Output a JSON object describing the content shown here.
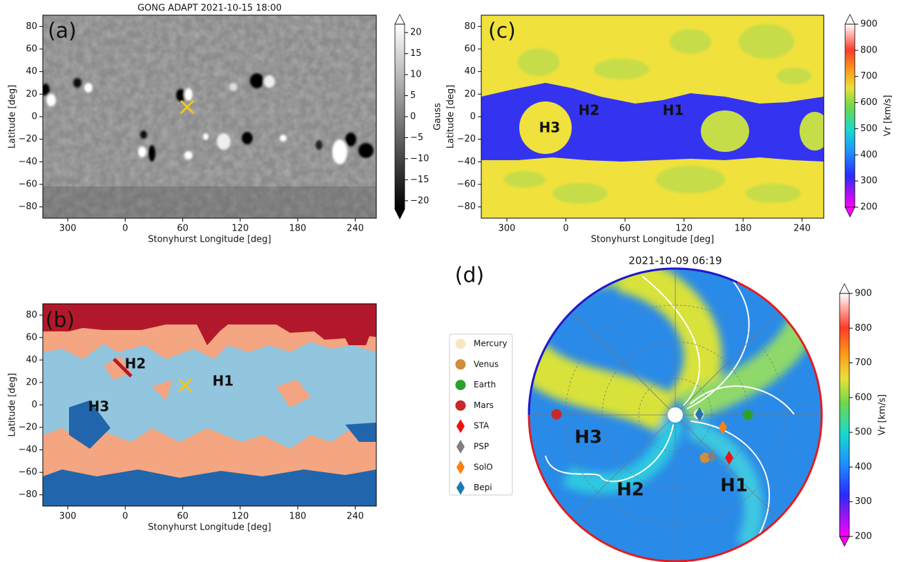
{
  "chart_data": [
    {
      "type": "heatmap",
      "panel_label": "(a)",
      "title": "GONG ADAPT 2021-10-15 18:00",
      "xlabel": "Stonyhurst Longitude [deg]",
      "ylabel": "Latitude [deg]",
      "xlim": [
        -86,
        262
      ],
      "xticks": [
        {
          "value": -60,
          "label": "300"
        },
        0,
        60,
        120,
        180,
        240
      ],
      "ylim": [
        -90,
        90
      ],
      "yticks": [
        {
          "value": -80,
          "label": "−80"
        },
        {
          "value": -60,
          "label": "−60"
        },
        {
          "value": -40,
          "label": "−40"
        },
        {
          "value": -20,
          "label": "−20"
        },
        0,
        20,
        40,
        60,
        80
      ],
      "colorbar": {
        "label": "Gauss",
        "lim": [
          -22,
          22
        ],
        "ticks": [
          {
            "value": -20,
            "label": "−20"
          },
          {
            "value": -15,
            "label": "−15"
          },
          {
            "value": -10,
            "label": "−10"
          },
          {
            "value": -5,
            "label": "−5"
          },
          0,
          5,
          10,
          15,
          20
        ]
      }
    },
    {
      "type": "heatmap",
      "panel_label": "(b)",
      "xlabel": "Stonyhurst Longitude [deg]",
      "ylabel": "Latitude [deg]",
      "xlim": [
        -86,
        262
      ],
      "xticks": [
        {
          "value": -60,
          "label": "300"
        },
        0,
        60,
        120,
        180,
        240
      ],
      "ylim": [
        -90,
        90
      ],
      "yticks": [
        {
          "value": -80,
          "label": "−80"
        },
        {
          "value": -60,
          "label": "−60"
        },
        {
          "value": -40,
          "label": "−40"
        },
        {
          "value": -20,
          "label": "−20"
        },
        0,
        20,
        40,
        60,
        80
      ],
      "annotations": [
        "H2",
        "H1",
        "H3"
      ]
    },
    {
      "type": "heatmap",
      "panel_label": "(c)",
      "xlabel": "Stonyhurst Longitude [deg]",
      "ylabel": "Latitude [deg]",
      "xlim": [
        -86,
        262
      ],
      "xticks": [
        {
          "value": -60,
          "label": "300"
        },
        0,
        60,
        120,
        180,
        240
      ],
      "ylim": [
        -90,
        90
      ],
      "yticks": [
        {
          "value": -80,
          "label": "−80"
        },
        {
          "value": -60,
          "label": "−60"
        },
        {
          "value": -40,
          "label": "−40"
        },
        {
          "value": -20,
          "label": "−20"
        },
        0,
        20,
        40,
        60,
        80
      ],
      "annotations": [
        "H2",
        "H1",
        "H3"
      ],
      "colorbar": {
        "label": "Vr [km/s]",
        "lim": [
          200,
          900
        ],
        "ticks": [
          200,
          300,
          400,
          500,
          600,
          700,
          800,
          900
        ]
      }
    },
    {
      "type": "polar",
      "panel_label": "(d)",
      "title": "2021-10-09 06:19",
      "annotations": [
        "H3",
        "H2",
        "H1"
      ],
      "legend": [
        {
          "name": "Mercury",
          "color": "#fbe6c2",
          "marker": "circle"
        },
        {
          "name": "Venus",
          "color": "#d08d3a",
          "marker": "circle"
        },
        {
          "name": "Earth",
          "color": "#2ca02c",
          "marker": "circle"
        },
        {
          "name": "Mars",
          "color": "#c82828",
          "marker": "circle"
        },
        {
          "name": "STA",
          "color": "#ee1111",
          "marker": "diamond"
        },
        {
          "name": "PSP",
          "color": "#808080",
          "marker": "diamond"
        },
        {
          "name": "SolO",
          "color": "#ff7f0e",
          "marker": "diamond"
        },
        {
          "name": "Bepi",
          "color": "#1f77b4",
          "marker": "diamond"
        }
      ],
      "colorbar": {
        "label": "Vr [km/s]",
        "lim": [
          200,
          900
        ],
        "ticks": [
          200,
          300,
          400,
          500,
          600,
          700,
          800,
          900
        ]
      }
    }
  ]
}
